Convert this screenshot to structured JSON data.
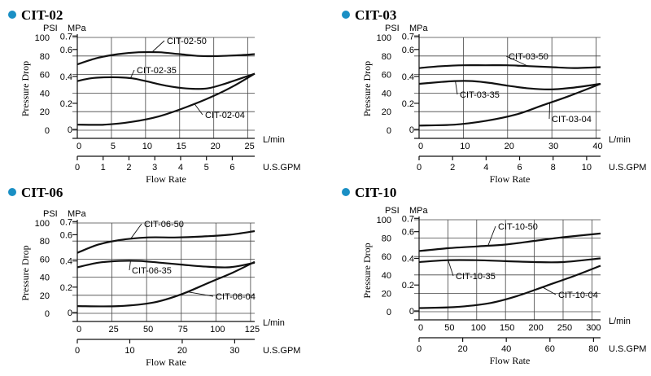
{
  "chart_data": [
    {
      "type": "line",
      "title": "CIT-02",
      "y_units": [
        "PSI",
        "MPa"
      ],
      "ylabel": "Pressure Drop",
      "xlabel": "Flow Rate",
      "psi_ticks": [
        0,
        20,
        40,
        60,
        80,
        100
      ],
      "mpa_ticks": [
        0,
        0.2,
        0.4,
        0.6,
        0.7
      ],
      "lmin_unit": "L/min",
      "lmin_ticks": [
        0,
        5,
        10,
        15,
        20,
        25
      ],
      "lmin_range": [
        0,
        26
      ],
      "gpm_unit": "U.S.GPM",
      "gpm_ticks": [
        0,
        1,
        2,
        3,
        4,
        5,
        6
      ],
      "ylim_psi": [
        0,
        100
      ],
      "series": [
        {
          "name": "CIT-02-50",
          "x": [
            0,
            3,
            6,
            9,
            12,
            15,
            18,
            21,
            24,
            26
          ],
          "y": [
            71,
            78,
            82,
            84,
            84,
            82,
            80,
            80,
            81,
            82
          ]
        },
        {
          "name": "CIT-02-35",
          "x": [
            0,
            2,
            4,
            6,
            8,
            10,
            13,
            16,
            19,
            22,
            26
          ],
          "y": [
            53,
            56,
            57,
            57,
            56,
            53,
            48,
            45,
            45,
            51,
            61
          ]
        },
        {
          "name": "CIT-02-04",
          "x": [
            0,
            4,
            8,
            12,
            16,
            20,
            23,
            26
          ],
          "y": [
            6,
            6,
            9,
            15,
            25,
            37,
            48,
            61
          ]
        }
      ]
    },
    {
      "type": "line",
      "title": "CIT-03",
      "y_units": [
        "PSI",
        "MPa"
      ],
      "ylabel": "Pressure Drop",
      "xlabel": "Flow Rate",
      "psi_ticks": [
        0,
        20,
        40,
        60,
        80,
        100
      ],
      "mpa_ticks": [
        0,
        0.2,
        0.4,
        0.6,
        0.7
      ],
      "lmin_unit": "L/min",
      "lmin_ticks": [
        0,
        10,
        20,
        30,
        40
      ],
      "lmin_range": [
        0,
        41
      ],
      "gpm_unit": "U.S.GPM",
      "gpm_ticks": [
        0,
        2,
        4,
        6,
        8,
        10
      ],
      "ylim_psi": [
        0,
        100
      ],
      "series": [
        {
          "name": "CIT-03-50",
          "x": [
            0,
            5,
            10,
            15,
            20,
            25,
            30,
            35,
            41
          ],
          "y": [
            67,
            69,
            70,
            70,
            70,
            69,
            68,
            67,
            68
          ]
        },
        {
          "name": "CIT-03-35",
          "x": [
            0,
            5,
            8,
            12,
            16,
            20,
            25,
            30,
            35,
            41
          ],
          "y": [
            50,
            52,
            53,
            53,
            51,
            48,
            45,
            44,
            46,
            50
          ]
        },
        {
          "name": "CIT-03-04",
          "x": [
            0,
            8,
            15,
            22,
            28,
            34,
            41
          ],
          "y": [
            5,
            6,
            10,
            17,
            27,
            37,
            50
          ]
        }
      ]
    },
    {
      "type": "line",
      "title": "CIT-06",
      "y_units": [
        "PSI",
        "MPa"
      ],
      "ylabel": "Pressure Drop",
      "xlabel": "Flow Rate",
      "psi_ticks": [
        0,
        20,
        40,
        60,
        80,
        100
      ],
      "mpa_ticks": [
        0,
        0.2,
        0.4,
        0.6,
        0.7
      ],
      "lmin_unit": "L/min",
      "lmin_ticks": [
        0,
        25,
        50,
        75,
        100,
        125
      ],
      "lmin_range": [
        0,
        128
      ],
      "gpm_unit": "U.S.GPM",
      "gpm_ticks": [
        0,
        10,
        20,
        30
      ],
      "ylim_psi": [
        0,
        100
      ],
      "series": [
        {
          "name": "CIT-06-50",
          "x": [
            0,
            15,
            30,
            50,
            70,
            90,
            110,
            128
          ],
          "y": [
            67,
            76,
            81,
            84,
            84,
            85,
            87,
            91
          ]
        },
        {
          "name": "CIT-06-35",
          "x": [
            0,
            15,
            30,
            45,
            60,
            75,
            90,
            110,
            128
          ],
          "y": [
            51,
            56,
            58,
            58,
            56,
            54,
            52,
            51,
            56
          ]
        },
        {
          "name": "CIT-06-04",
          "x": [
            0,
            30,
            55,
            75,
            95,
            112,
            128
          ],
          "y": [
            8,
            8,
            12,
            21,
            34,
            45,
            57
          ]
        }
      ]
    },
    {
      "type": "line",
      "title": "CIT-10",
      "y_units": [
        "PSI",
        "MPa"
      ],
      "ylabel": "Pressure Drop",
      "xlabel": "Flow Rate",
      "psi_ticks": [
        0,
        20,
        40,
        60,
        80,
        100
      ],
      "mpa_ticks": [
        0,
        0.2,
        0.4,
        0.6,
        0.7
      ],
      "lmin_unit": "L/min",
      "lmin_ticks": [
        0,
        50,
        100,
        150,
        200,
        250,
        300
      ],
      "lmin_range": [
        0,
        315
      ],
      "gpm_unit": "U.S.GPM",
      "gpm_ticks": [
        0,
        20,
        40,
        60,
        80
      ],
      "ylim_psi": [
        0,
        100
      ],
      "series": [
        {
          "name": "CIT-10-50",
          "x": [
            0,
            50,
            100,
            150,
            200,
            250,
            315
          ],
          "y": [
            66,
            69,
            71,
            73,
            77,
            81,
            85
          ]
        },
        {
          "name": "CIT-10-35",
          "x": [
            0,
            50,
            100,
            150,
            200,
            250,
            315
          ],
          "y": [
            54,
            56,
            56,
            55,
            54,
            54,
            58
          ]
        },
        {
          "name": "CIT-10-04",
          "x": [
            0,
            60,
            120,
            170,
            220,
            270,
            315
          ],
          "y": [
            4,
            5,
            9,
            17,
            28,
            39,
            50
          ]
        }
      ]
    }
  ]
}
